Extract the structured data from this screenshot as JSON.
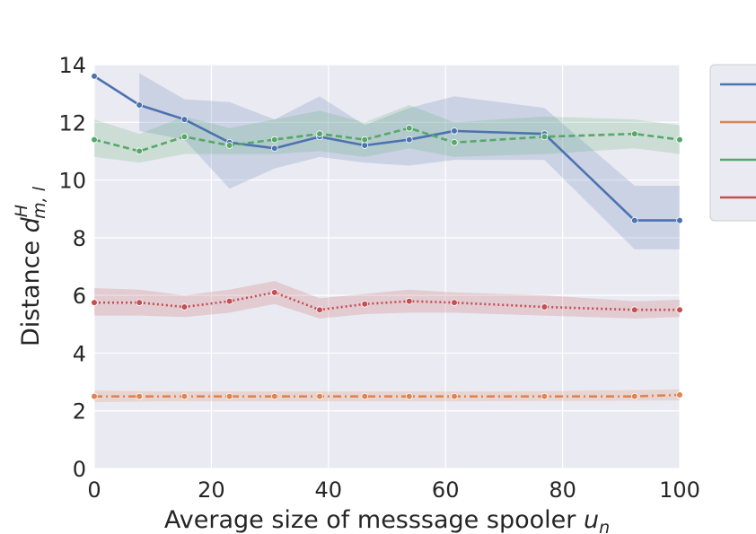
{
  "chart_data": {
    "type": "line",
    "xlabel": "Average size of messsage spooler",
    "xlabel_var": "u",
    "xlabel_sub": "n",
    "ylabel": "Distance",
    "ylabel_var": "d",
    "ylabel_sup": "H",
    "ylabel_sub": "m, l",
    "xlim": [
      0,
      100
    ],
    "ylim": [
      0,
      14
    ],
    "xticks": [
      0,
      20,
      40,
      60,
      80,
      100
    ],
    "yticks": [
      0,
      2,
      4,
      6,
      8,
      10,
      12,
      14
    ],
    "grid": true,
    "legend_position": "right",
    "x": [
      0,
      7.7,
      15.4,
      23.1,
      30.8,
      38.5,
      46.2,
      53.8,
      61.5,
      76.9,
      92.3,
      100
    ],
    "series": [
      {
        "color": "#4c72b0",
        "dash": "solid",
        "values": [
          13.6,
          12.6,
          12.1,
          11.3,
          11.1,
          11.5,
          11.2,
          11.4,
          11.7,
          11.6,
          8.6,
          8.6
        ],
        "lower": [
          null,
          11.7,
          11.4,
          9.7,
          10.4,
          10.8,
          10.6,
          10.5,
          10.7,
          10.7,
          7.6,
          7.6
        ],
        "upper": [
          null,
          13.7,
          12.8,
          12.7,
          12.1,
          12.9,
          11.9,
          12.5,
          12.9,
          12.5,
          9.8,
          9.8
        ]
      },
      {
        "color": "#dd8452",
        "dash": "dashdot",
        "values": [
          2.5,
          2.5,
          2.5,
          2.5,
          2.5,
          2.5,
          2.5,
          2.5,
          2.5,
          2.5,
          2.5,
          2.55
        ],
        "lower": [
          2.3,
          2.32,
          2.33,
          2.33,
          2.33,
          2.33,
          2.33,
          2.33,
          2.33,
          2.34,
          2.35,
          2.36
        ],
        "upper": [
          2.7,
          2.68,
          2.67,
          2.67,
          2.67,
          2.67,
          2.67,
          2.67,
          2.67,
          2.68,
          2.72,
          2.74
        ]
      },
      {
        "color": "#55a868",
        "dash": "dashed",
        "values": [
          11.4,
          11.0,
          11.5,
          11.2,
          11.4,
          11.6,
          11.4,
          11.8,
          11.3,
          11.5,
          11.6,
          11.4
        ],
        "lower": [
          10.8,
          10.6,
          10.9,
          10.9,
          10.9,
          11.0,
          10.8,
          11.1,
          10.8,
          10.9,
          11.1,
          10.9
        ],
        "upper": [
          12.1,
          11.6,
          12.2,
          11.8,
          12.1,
          12.4,
          12.0,
          12.6,
          12.0,
          12.2,
          12.1,
          11.9
        ]
      },
      {
        "color": "#c44e52",
        "dash": "dotted",
        "values": [
          5.75,
          5.75,
          5.6,
          5.8,
          6.1,
          5.5,
          5.7,
          5.8,
          5.75,
          5.6,
          5.5,
          5.5
        ],
        "lower": [
          5.3,
          5.3,
          5.25,
          5.4,
          5.7,
          5.2,
          5.35,
          5.4,
          5.4,
          5.3,
          5.2,
          5.25
        ],
        "upper": [
          6.25,
          6.2,
          6.0,
          6.2,
          6.5,
          5.9,
          6.05,
          6.2,
          6.1,
          6.0,
          5.8,
          5.85
        ]
      }
    ]
  }
}
